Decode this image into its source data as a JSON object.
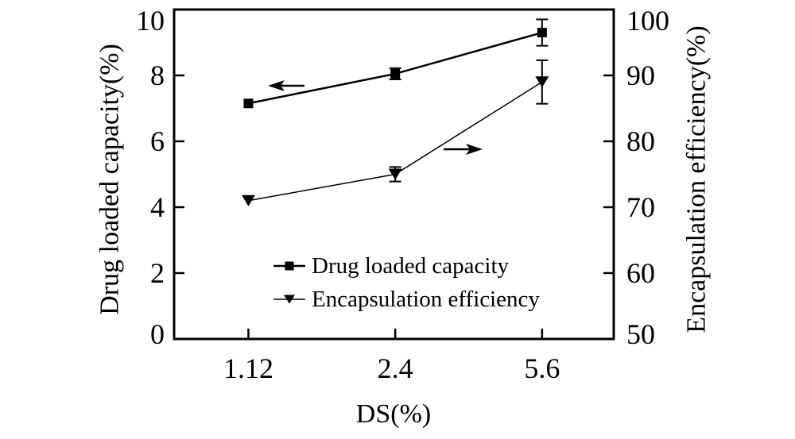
{
  "figure": {
    "background": "#ffffff",
    "foreground": "#000000"
  },
  "chart_data": {
    "type": "line",
    "title": "",
    "xlabel": "DS(%)",
    "x_categories": [
      "1.12",
      "2.4",
      "5.6"
    ],
    "grid": false,
    "left_axis": {
      "label": "Drug loaded capacity(%)",
      "range": [
        0,
        10
      ],
      "ticks": [
        0,
        2,
        4,
        6,
        8,
        10
      ],
      "tick_labels": [
        "0",
        "2",
        "4",
        "6",
        "8",
        "10"
      ]
    },
    "right_axis": {
      "label": "Encapsulation efficiency(%)",
      "range": [
        50,
        100
      ],
      "ticks": [
        50,
        60,
        70,
        80,
        90,
        100
      ],
      "tick_labels": [
        "50",
        "60",
        "70",
        "80",
        "90",
        "100"
      ]
    },
    "series": [
      {
        "name": "Drug loaded capacity",
        "axis": "left",
        "marker": "square",
        "line_width": 2.5,
        "values": [
          7.15,
          8.05,
          9.3
        ],
        "errors": [
          0,
          0.17,
          0.4
        ]
      },
      {
        "name": "Encapsulation efficiency",
        "axis": "right",
        "marker": "triangle-down",
        "line_width": 1.5,
        "values": [
          71,
          75,
          89
        ],
        "errors": [
          0,
          1.1,
          3.3
        ]
      }
    ],
    "legend": {
      "position": "lower-center",
      "entries": [
        "Drug loaded capacity",
        "Encapsulation efficiency"
      ]
    },
    "annotations": [
      {
        "type": "arrow",
        "direction": "left",
        "target": "left-axis"
      },
      {
        "type": "arrow",
        "direction": "right",
        "target": "right-axis"
      }
    ]
  }
}
